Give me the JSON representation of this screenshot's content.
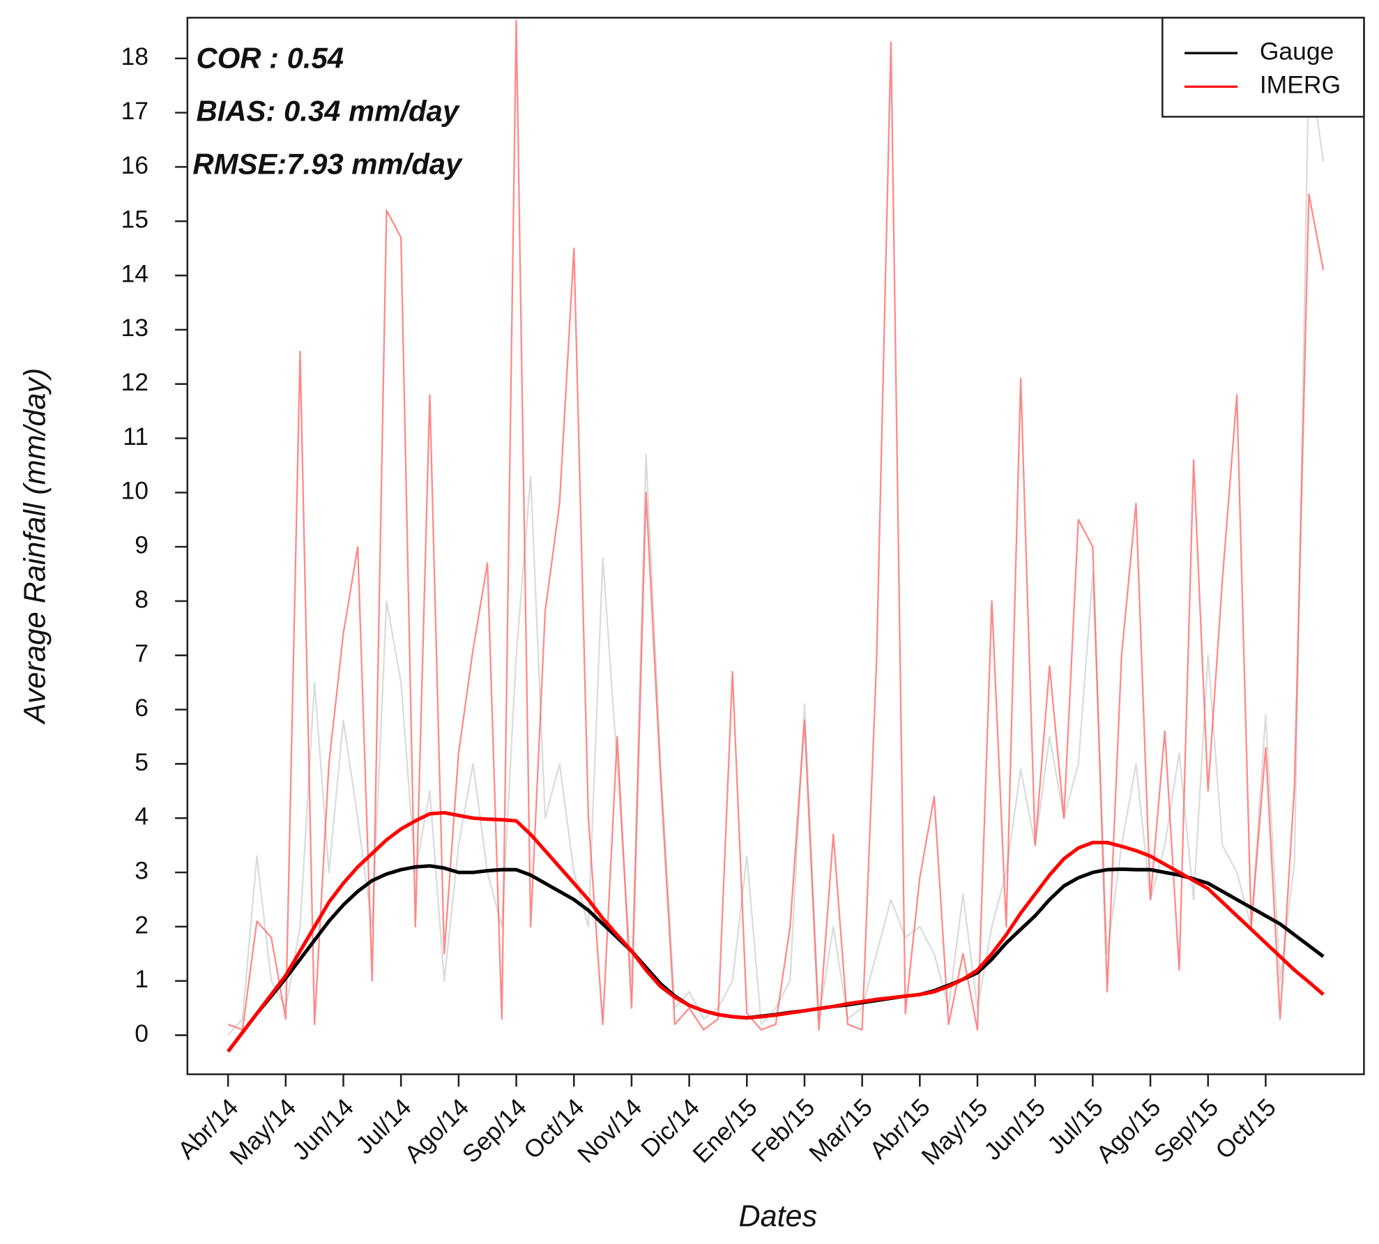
{
  "chart_data": {
    "type": "line",
    "annotations": [
      "COR : 0.54",
      "BIAS: 0.34 mm/day",
      "RMSE:7.93 mm/day"
    ],
    "xlabel": "Dates",
    "ylabel": "Average Rainfall (mm/day)",
    "categories": [
      "Abr/14",
      null,
      null,
      null,
      "May/14",
      null,
      null,
      null,
      "Jun/14",
      null,
      null,
      null,
      "Jul/14",
      null,
      null,
      null,
      "Ago/14",
      null,
      null,
      null,
      "Sep/14",
      null,
      null,
      null,
      "Oct/14",
      null,
      null,
      null,
      "Nov/14",
      null,
      null,
      null,
      "Dic/14",
      null,
      null,
      null,
      "Ene/15",
      null,
      null,
      null,
      "Feb/15",
      null,
      null,
      null,
      "Mar/15",
      null,
      null,
      null,
      "Abr/15",
      null,
      null,
      null,
      "May/15",
      null,
      null,
      null,
      "Jun/15",
      null,
      null,
      null,
      "Jul/15",
      null,
      null,
      null,
      "Ago/15",
      null,
      null,
      null,
      "Sep/15",
      null,
      null,
      null,
      "Oct/15",
      null,
      null,
      null,
      null
    ],
    "series": [
      {
        "color": "#cfcfcf",
        "values": [
          0.0,
          0.3,
          3.3,
          1.0,
          0.5,
          2.0,
          6.5,
          3.0,
          5.8,
          4.0,
          2.0,
          8.0,
          6.5,
          3.0,
          4.5,
          1.0,
          3.5,
          5.0,
          3.0,
          2.0,
          7.0,
          10.3,
          4.0,
          5.0,
          3.0,
          2.0,
          8.8,
          5.0,
          1.0,
          10.7,
          5.1,
          0.5,
          0.8,
          0.3,
          0.5,
          1.0,
          3.3,
          0.2,
          0.5,
          1.0,
          6.1,
          0.3,
          2.0,
          0.3,
          0.5,
          1.5,
          2.5,
          1.8,
          2.0,
          1.5,
          0.5,
          2.6,
          0.5,
          2.0,
          3.0,
          4.9,
          3.5,
          5.5,
          4.0,
          5.0,
          8.5,
          1.5,
          3.5,
          5.0,
          2.5,
          3.5,
          5.2,
          2.5,
          7.0,
          3.5,
          3.0,
          2.0,
          5.9,
          1.0,
          3.2,
          18.0,
          16.1
        ]
      },
      {
        "color": "#ff6060",
        "values": [
          0.2,
          0.1,
          2.1,
          1.8,
          0.3,
          12.6,
          0.2,
          5.0,
          7.4,
          9.0,
          1.0,
          15.2,
          14.7,
          2.0,
          11.8,
          1.5,
          5.2,
          7.1,
          8.7,
          0.3,
          18.7,
          2.0,
          7.8,
          9.8,
          14.5,
          4.0,
          0.2,
          5.5,
          0.5,
          10.0,
          4.8,
          0.2,
          0.5,
          0.1,
          0.3,
          6.7,
          0.4,
          0.1,
          0.2,
          2.0,
          5.8,
          0.1,
          3.7,
          0.2,
          0.1,
          6.9,
          18.3,
          0.4,
          2.9,
          4.4,
          0.2,
          1.5,
          0.1,
          8.0,
          2.0,
          12.1,
          3.5,
          6.8,
          4.0,
          9.5,
          9.0,
          0.8,
          7.0,
          9.8,
          2.5,
          5.6,
          1.2,
          10.6,
          4.5,
          8.4,
          11.8,
          2.0,
          5.3,
          0.3,
          4.6,
          15.5,
          14.1
        ]
      },
      {
        "name": "Gauge",
        "color": "#000000",
        "values": [
          -0.3,
          0.05,
          0.4,
          0.72,
          1.05,
          1.4,
          1.75,
          2.1,
          2.4,
          2.65,
          2.85,
          2.97,
          3.05,
          3.1,
          3.12,
          3.08,
          3.0,
          3.0,
          3.03,
          3.05,
          3.05,
          2.95,
          2.8,
          2.65,
          2.5,
          2.3,
          2.05,
          1.8,
          1.55,
          1.25,
          0.95,
          0.72,
          0.55,
          0.45,
          0.38,
          0.34,
          0.32,
          0.35,
          0.38,
          0.42,
          0.45,
          0.49,
          0.53,
          0.56,
          0.6,
          0.64,
          0.68,
          0.72,
          0.75,
          0.82,
          0.92,
          1.03,
          1.15,
          1.4,
          1.7,
          1.95,
          2.2,
          2.5,
          2.75,
          2.9,
          3.0,
          3.05,
          3.06,
          3.05,
          3.05,
          3.0,
          2.95,
          2.88,
          2.8,
          2.65,
          2.5,
          2.35,
          2.2,
          2.05,
          1.85,
          1.65,
          1.45
        ]
      },
      {
        "name": "IMERG",
        "color": "#ff0000",
        "values": [
          -0.3,
          0.05,
          0.4,
          0.75,
          1.1,
          1.55,
          2.0,
          2.45,
          2.8,
          3.1,
          3.35,
          3.6,
          3.8,
          3.95,
          4.08,
          4.1,
          4.05,
          4.0,
          3.98,
          3.97,
          3.95,
          3.7,
          3.4,
          3.1,
          2.8,
          2.5,
          2.15,
          1.85,
          1.55,
          1.2,
          0.9,
          0.7,
          0.55,
          0.45,
          0.38,
          0.34,
          0.32,
          0.34,
          0.37,
          0.41,
          0.45,
          0.49,
          0.53,
          0.58,
          0.62,
          0.66,
          0.69,
          0.72,
          0.75,
          0.8,
          0.9,
          1.03,
          1.2,
          1.5,
          1.85,
          2.25,
          2.6,
          2.95,
          3.25,
          3.45,
          3.55,
          3.55,
          3.48,
          3.4,
          3.3,
          3.15,
          3.0,
          2.85,
          2.7,
          2.45,
          2.2,
          1.95,
          1.7,
          1.45,
          1.2,
          0.98,
          0.75
        ]
      }
    ],
    "ylim": [
      -0.72,
      18.75
    ],
    "yticks": [
      0,
      1,
      2,
      3,
      4,
      5,
      6,
      7,
      8,
      9,
      10,
      11,
      12,
      13,
      14,
      15,
      16,
      17,
      18
    ],
    "legend": "top-right"
  }
}
